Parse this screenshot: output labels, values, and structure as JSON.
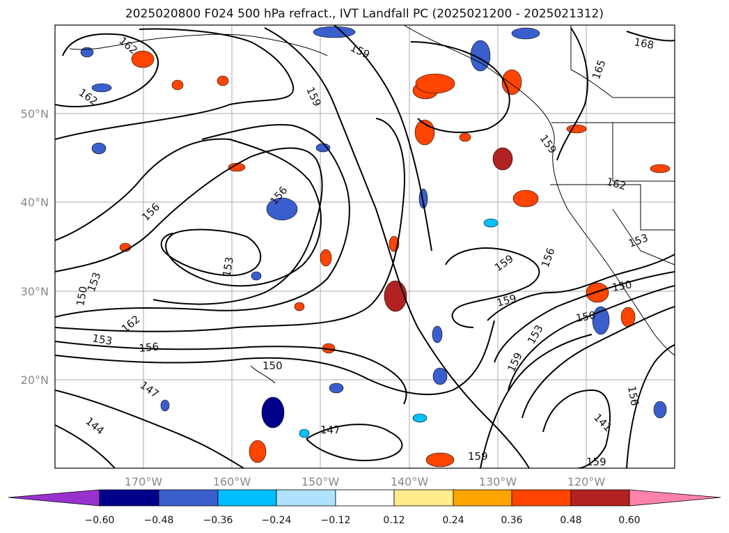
{
  "title": "2025020800 F024 500 hPa refract., IVT Landfall PC (2025021200 - 2025021312)",
  "map": {
    "lat_ticks": [
      "50°N",
      "40°N",
      "30°N",
      "20°N"
    ],
    "lon_ticks": [
      "170°W",
      "160°W",
      "150°W",
      "140°W",
      "130°W",
      "120°W"
    ],
    "contour_labels": [
      "162",
      "159",
      "168",
      "165",
      "162",
      "159",
      "156",
      "162",
      "153",
      "156",
      "153",
      "150",
      "153",
      "162",
      "153",
      "156",
      "147",
      "144",
      "150",
      "147",
      "159",
      "159",
      "159",
      "156",
      "150",
      "150",
      "153",
      "159",
      "141",
      "156",
      "159",
      "159"
    ]
  },
  "colorbar": {
    "ticks": [
      "−0.60",
      "−0.48",
      "−0.36",
      "−0.24",
      "−0.12",
      "0.12",
      "0.24",
      "0.36",
      "0.48",
      "0.60"
    ],
    "colors": [
      "#9932cc",
      "#00008b",
      "#3a5fcd",
      "#00bfff",
      "#b0e2ff",
      "#ffffff",
      "#ffec8b",
      "#ffa500",
      "#ff4500",
      "#b22222",
      "#ff82ab"
    ]
  }
}
